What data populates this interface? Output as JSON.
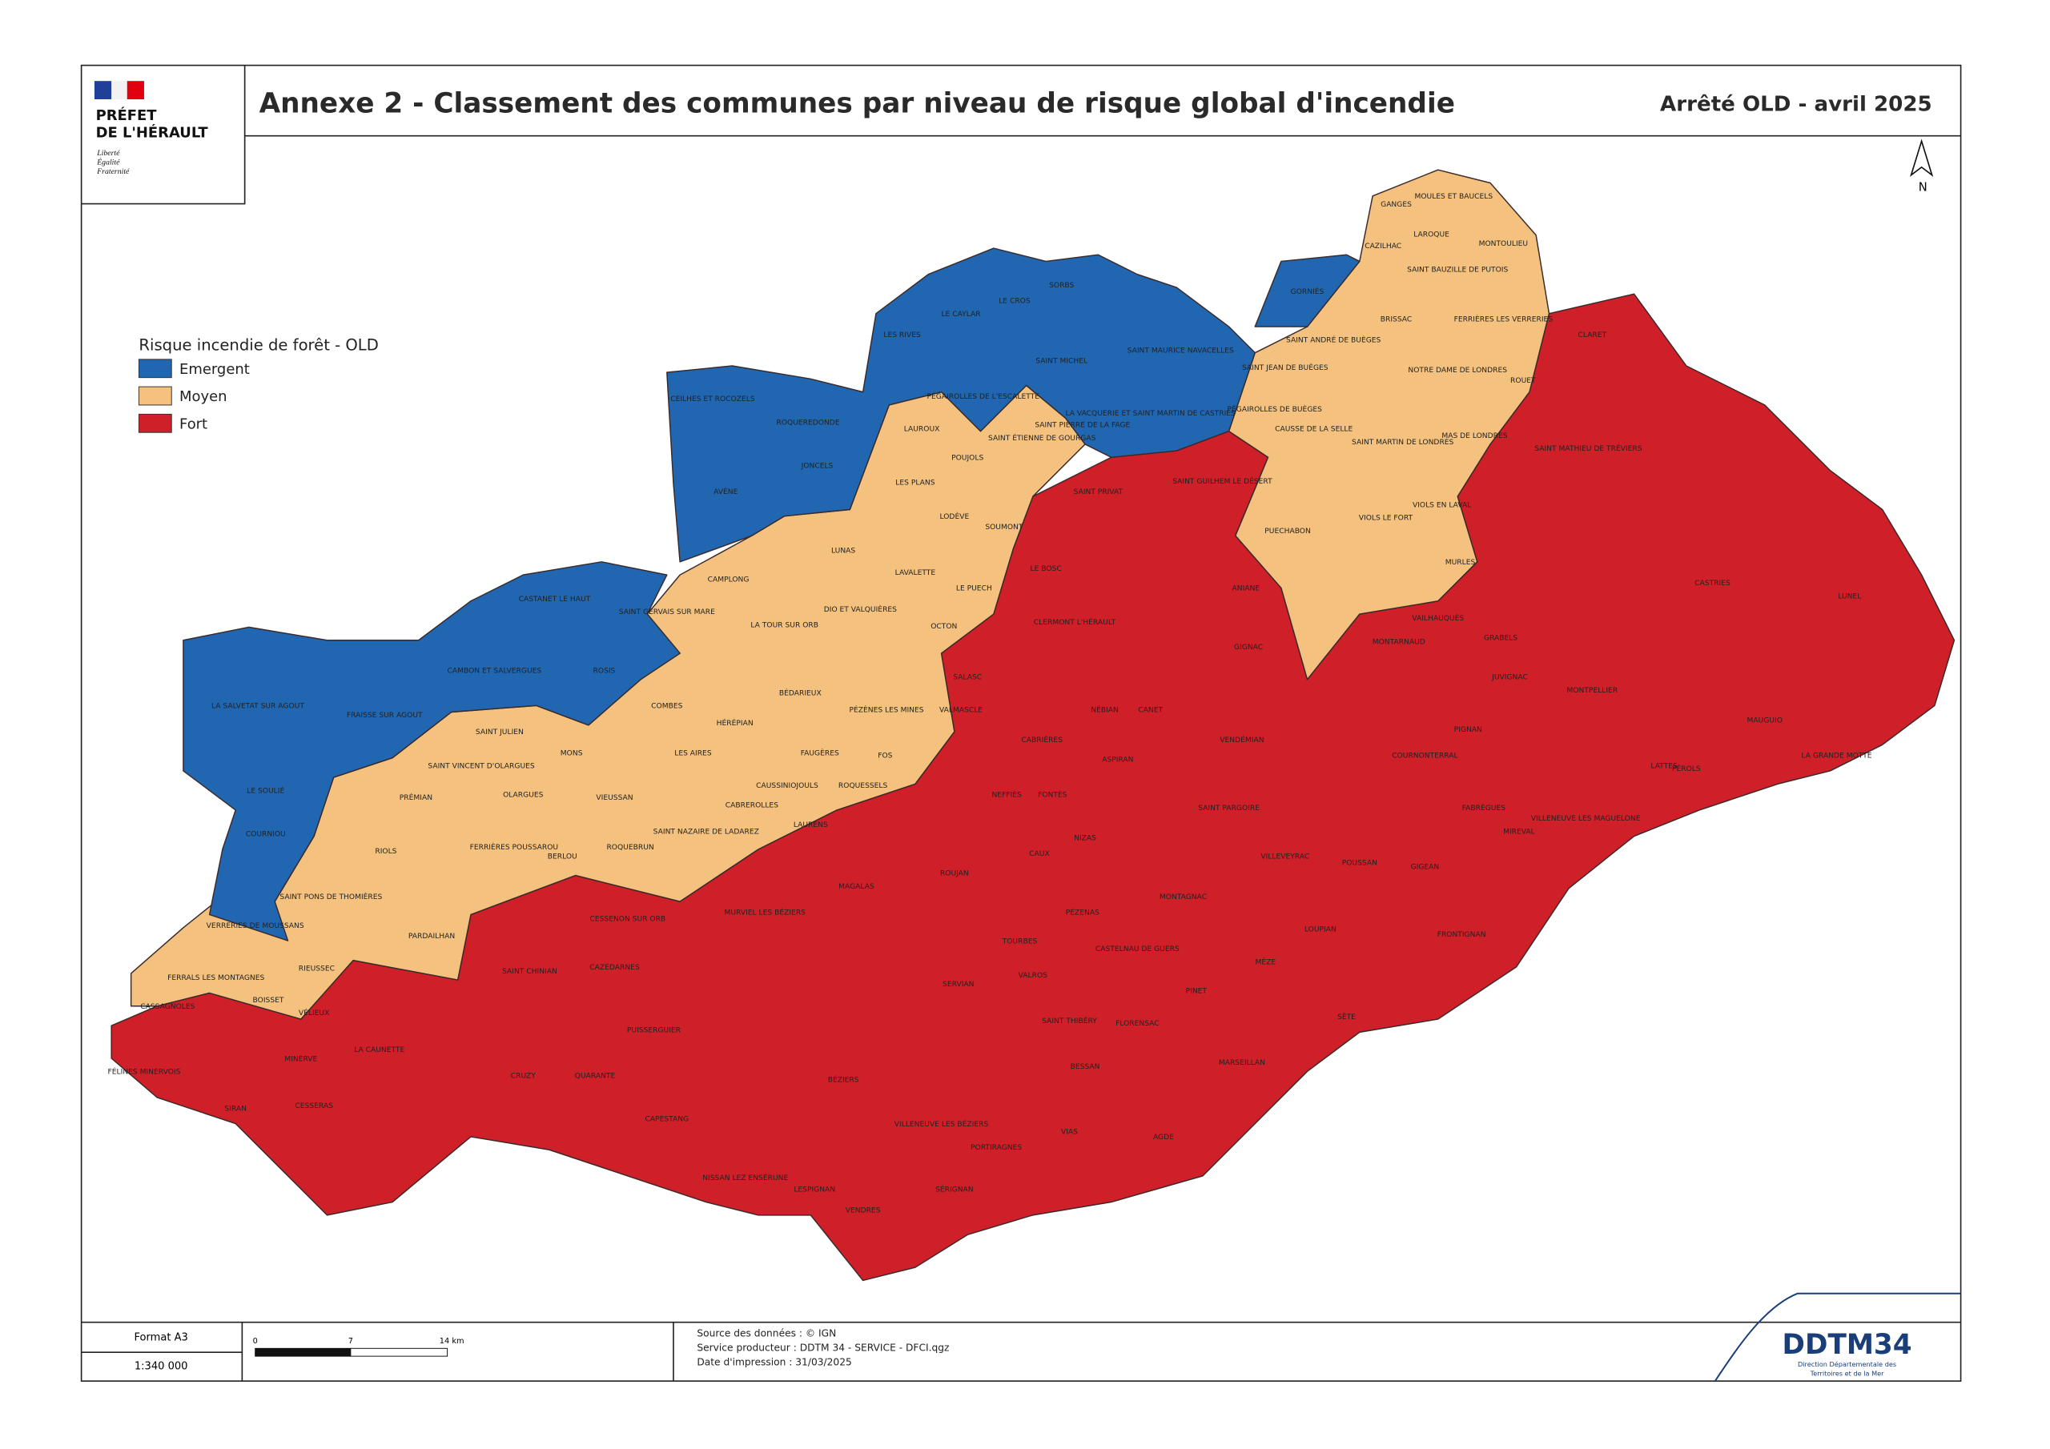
{
  "header": {
    "logo_lines": [
      "PRÉFET",
      "DE L'HÉRAULT"
    ],
    "motto": [
      "Liberté",
      "Égalité",
      "Fraternité"
    ],
    "title": "Annexe 2 - Classement des communes par niveau de risque global d'incendie",
    "subtitle": "Arrêté OLD - avril 2025"
  },
  "north": "N",
  "legend": {
    "title": "Risque incendie de forêt - OLD",
    "items": [
      {
        "label": "Emergent",
        "color": "#2166b0"
      },
      {
        "label": "Moyen",
        "color": "#f4c27e"
      },
      {
        "label": "Fort",
        "color": "#cf1f28"
      }
    ]
  },
  "communes": [
    "GANGES",
    "MOULES ET BAUCELS",
    "LAROQUE",
    "MONTOULIEU",
    "CAZILHAC",
    "SAINT BAUZILLE DE PUTOIS",
    "GORNIÈS",
    "BRISSAC",
    "FERRIÈRES LES VERRERIES",
    "SAINT ANDRÉ DE BUÈGES",
    "NOTRE DAME DE LONDRES",
    "ROUET",
    "SAINT JEAN DE BUÈGES",
    "PÉGAIROLLES DE BUÈGES",
    "CAUSSE DE LA SELLE",
    "SAINT MARTIN DE LONDRES",
    "MAS DE LONDRES",
    "VIOLS EN LAVAL",
    "VIOLS LE FORT",
    "PUECHABON",
    "MURLES",
    "SORBS",
    "LE CROS",
    "LE CAYLAR",
    "LES RIVES",
    "SAINT MICHEL",
    "SAINT MAURICE NAVACELLES",
    "PÉGAIROLLES DE L'ESCALETTE",
    "SAINT PIERRE DE LA FAGE",
    "LA VACQUERIE ET SAINT MARTIN DE CASTRIES",
    "CEILHES ET ROCOZELS",
    "ROQUEREDONDE",
    "JONCELS",
    "AVÈNE",
    "LAUROUX",
    "POUJOLS",
    "SAINT ÉTIENNE DE GOURGAS",
    "LES PLANS",
    "LODÈVE",
    "SOUMONT",
    "LUNAS",
    "LAVALETTE",
    "LE PUECH",
    "CASTANET LE HAUT",
    "CAMBON ET SALVERGUES",
    "ROSIS",
    "LA SALVETAT SUR AGOUT",
    "FRAISSE SUR AGOUT",
    "LE SOULIÉ",
    "COURNIOU",
    "VERRERIES DE MOUSSANS",
    "SAINT GERVAIS SUR MARE",
    "CAMPLONG",
    "LA TOUR SUR ORB",
    "DIO ET VALQUIÈRES",
    "BÉDARIEUX",
    "COMBES",
    "HÉRÉPIAN",
    "LES AIRES",
    "SAINT JULIEN",
    "SAINT VINCENT D'OLARGUES",
    "OLARGUES",
    "PRÉMIAN",
    "MONS",
    "VIEUSSAN",
    "PÉZÈNES LES MINES",
    "FAUGÈRES",
    "FOS",
    "CAUSSINIOJOULS",
    "ROQUESSELS",
    "CABREROLLES",
    "SAINT NAZAIRE DE LADAREZ",
    "ROQUEBRUN",
    "BERLOU",
    "FERRIÈRES POUSSAROU",
    "RIOLS",
    "SAINT PONS DE THOMIÈRES",
    "PARDAILHAN",
    "RIEUSSEC",
    "FERRALS LES MONTAGNES",
    "BOISSET",
    "CASSAGNOLES",
    "VÉLIEUX",
    "MONTPELLIER",
    "BÉZIERS",
    "SÈTE",
    "AGDE",
    "MÈZE",
    "LATTES",
    "MAUGUIO",
    "LUNEL",
    "CLERMONT L'HÉRAULT",
    "GIGNAC",
    "ANIANE",
    "PÉZENAS",
    "MARSEILLAN",
    "FRONTIGNAN",
    "MIREVAL",
    "VILLEVEYRAC",
    "MONTAGNAC",
    "VIAS",
    "SÉRIGNAN",
    "SERVIAN",
    "CAPESTANG",
    "BESSAN",
    "FLORENSAC",
    "SAINT GUILHEM LE DÉSERT",
    "SAINT PRIVAT",
    "LE BOSC",
    "CABRIÈRES",
    "NÉBIAN",
    "MONTARNAUD",
    "GRABELS",
    "JUVIGNAC",
    "COURNONTERRAL",
    "PIGNAN",
    "POUSSAN",
    "GIGEAN",
    "LOUPIAN",
    "FABRÈGUES",
    "VILLENEUVE LES MAGUELONE",
    "PÉROLS",
    "CASTRIES",
    "SAINT MATHIEU DE TRÉVIERS",
    "CLARET",
    "VAILHAUQUÈS",
    "LA GRANDE MOTTE",
    "OCTON",
    "SALASC",
    "VALMASCLE",
    "LAURENS",
    "MAGALAS",
    "MURVIEL LES BÉZIERS",
    "SAINT CHINIAN",
    "CESSENON SUR ORB",
    "CAZEDARNES",
    "CRUZY",
    "QUARANTE",
    "PUISSERGUIER",
    "LA CAUNETTE",
    "MINERVE",
    "FÉLINES MINERVOIS",
    "SIRAN",
    "CESSERAS",
    "NISSAN LEZ ENSÉRUNE",
    "LESPIGNAN",
    "VENDRES",
    "VILLENEUVE LES BÉZIERS",
    "PORTIRAGNES",
    "FONTÈS",
    "NIZAS",
    "CAUX",
    "ROUJAN",
    "NEFFIÈS",
    "ASPIRAN",
    "CANET",
    "VENDÉMIAN",
    "SAINT PARGOIRE",
    "CASTELNAU DE GUERS",
    "TOURBES",
    "VALROS",
    "SAINT THIBÉRY",
    "PINET"
  ],
  "footer": {
    "format": "Format A3",
    "scale": "1:340 000",
    "scale_ticks": [
      "0",
      "7",
      "14 km"
    ],
    "sources": [
      "Source des données : © IGN",
      "Service producteur : DDTM 34 - SERVICE - DFCI.qgz",
      "Date d'impression : 31/03/2025"
    ],
    "agency": "DDTM34",
    "agency_sub": [
      "Direction Départementale des",
      "Territoires et de la Mer"
    ]
  }
}
